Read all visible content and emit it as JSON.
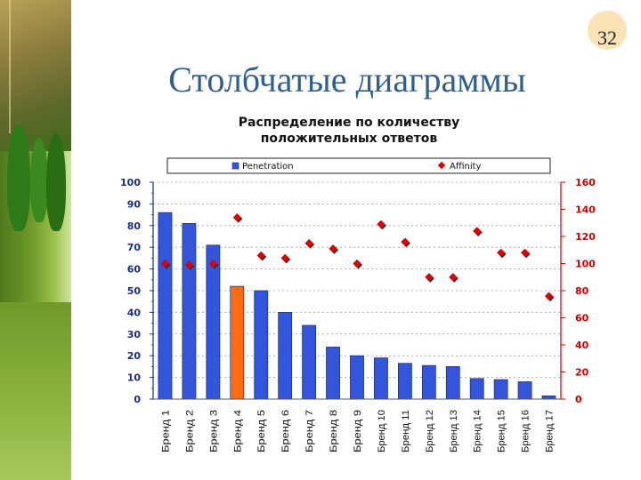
{
  "slide": {
    "title": "Столбчатые диаграммы",
    "page_number": "32"
  },
  "chart_data": {
    "type": "bar",
    "title_lines": [
      "Распределение по количеству",
      "положительных ответов"
    ],
    "categories": [
      "Бренд 1",
      "Бренд 2",
      "Бренд 3",
      "Бренд 4",
      "Бренд 5",
      "Бренд 6",
      "Бренд 7",
      "Бренд 8",
      "Бренд 9",
      "Бренд 10",
      "Бренд 11",
      "Бренд 12",
      "Бренд 13",
      "Бренд 14",
      "Бренд 15",
      "Бренд 16",
      "Бренд 17"
    ],
    "series": [
      {
        "name": "Penetration",
        "axis": "left",
        "kind": "bar",
        "color": "#3355dd",
        "highlight_index": 3,
        "highlight_color": "#ff6a13",
        "values": [
          86,
          81,
          71,
          52,
          50,
          40,
          34,
          24,
          20,
          19,
          16.5,
          15.5,
          15,
          9.5,
          9,
          8,
          1.5
        ]
      },
      {
        "name": "Affinity",
        "axis": "right",
        "kind": "marker",
        "color": "#dd0000",
        "values": [
          100,
          99,
          100,
          134,
          106,
          104,
          115,
          111,
          100,
          129,
          116,
          90,
          90,
          124,
          108,
          108,
          76
        ]
      }
    ],
    "yleft": {
      "min": 0,
      "max": 100,
      "ticks": [
        "0",
        "10",
        "20",
        "30",
        "40",
        "50",
        "60",
        "70",
        "80",
        "90",
        "100"
      ]
    },
    "yright": {
      "min": 0,
      "max": 160,
      "ticks": [
        "0",
        "20",
        "40",
        "60",
        "80",
        "100",
        "120",
        "140",
        "160"
      ]
    },
    "legend": {
      "position": "top"
    },
    "grid": true
  }
}
